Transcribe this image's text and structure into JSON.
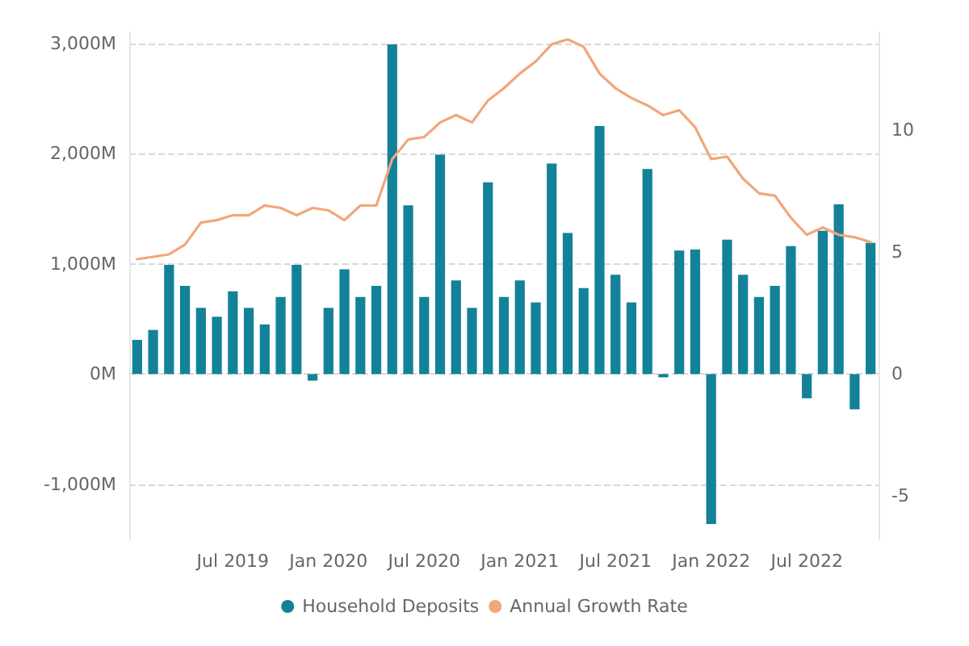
{
  "chart_data": {
    "type": "bar",
    "categories": [
      null,
      null,
      null,
      null,
      null,
      null,
      "Jul 2019",
      null,
      null,
      null,
      null,
      null,
      "Jan 2020",
      null,
      null,
      null,
      null,
      null,
      "Jul 2020",
      null,
      null,
      null,
      null,
      null,
      "Jan 2021",
      null,
      null,
      null,
      null,
      null,
      "Jul 2021",
      null,
      null,
      null,
      null,
      null,
      "Jan 2022",
      null,
      null,
      null,
      null,
      null,
      "Jul 2022",
      null,
      null,
      null,
      null
    ],
    "series": [
      {
        "name": "Household Deposits",
        "color": "#138299",
        "values": [
          310,
          400,
          990,
          800,
          600,
          520,
          750,
          600,
          450,
          700,
          990,
          -60,
          600,
          950,
          700,
          800,
          2990,
          1530,
          700,
          1990,
          850,
          600,
          1740,
          700,
          850,
          650,
          1910,
          1280,
          780,
          2250,
          900,
          650,
          1860,
          -30,
          1120,
          1130,
          -1360,
          1220,
          900,
          700,
          800,
          1160,
          -220,
          1300,
          1540,
          -320,
          1190
        ]
      },
      {
        "name": "Annual Growth Rate",
        "type": "line",
        "axis": "y2",
        "color": "#f2a679",
        "values": [
          4.7,
          4.8,
          4.9,
          5.3,
          6.2,
          6.3,
          6.5,
          6.5,
          6.9,
          6.8,
          6.5,
          6.8,
          6.7,
          6.3,
          6.9,
          6.9,
          8.8,
          9.6,
          9.7,
          10.3,
          10.6,
          10.3,
          11.2,
          11.7,
          12.3,
          12.8,
          13.5,
          13.7,
          13.4,
          12.3,
          11.7,
          11.3,
          11.0,
          10.6,
          10.8,
          10.1,
          8.8,
          8.9,
          8.0,
          7.4,
          7.3,
          6.4,
          5.7,
          6.0,
          5.7,
          5.6,
          5.4
        ]
      }
    ],
    "ylim": [
      -1500,
      3100
    ],
    "yticks": [
      {
        "value": -1000,
        "label": "-1,000M"
      },
      {
        "value": 0,
        "label": "0M"
      },
      {
        "value": 1000,
        "label": "1,000M"
      },
      {
        "value": 2000,
        "label": "2,000M"
      },
      {
        "value": 3000,
        "label": "3,000M"
      }
    ],
    "y2lim": [
      -6.77,
      13.99
    ],
    "y2ticks": [
      -5,
      0,
      5,
      10
    ],
    "grid": "y",
    "legend": "bottom",
    "marker": "none",
    "line_style": "solid"
  }
}
